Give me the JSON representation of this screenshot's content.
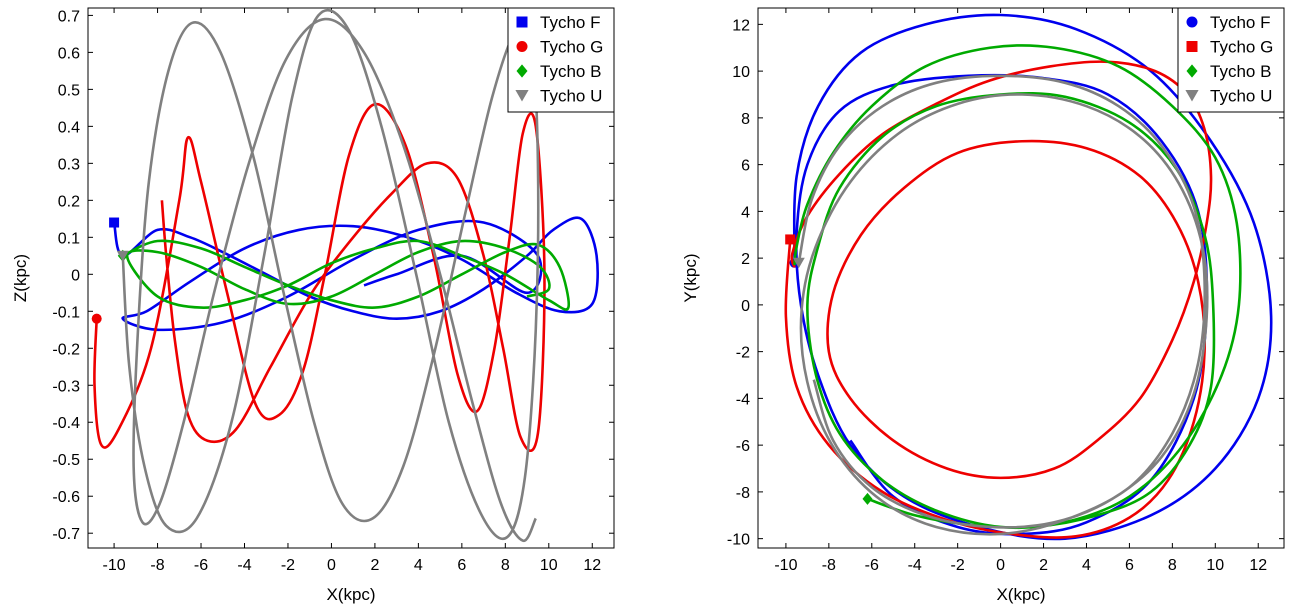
{
  "chart_data": [
    {
      "type": "line",
      "xlabel": "X(kpc)",
      "ylabel": "Z(kpc)",
      "xlim": [
        -11.2,
        13.0
      ],
      "ylim": [
        -0.74,
        0.72
      ],
      "xticks": [
        -10,
        -8,
        -6,
        -4,
        -2,
        0,
        2,
        4,
        6,
        8,
        10,
        12
      ],
      "yticks": [
        -0.7,
        -0.6,
        -0.5,
        -0.4,
        -0.3,
        -0.2,
        -0.1,
        0,
        0.1,
        0.2,
        0.3,
        0.4,
        0.5,
        0.6,
        0.7
      ],
      "legend_position": "top-right",
      "grid": false,
      "series": [
        {
          "name": "Tycho F",
          "color": "#0000ee",
          "marker": "square",
          "x": [
            -10.0,
            -9.6,
            -8.0,
            -6.5,
            -5.0,
            -3.0,
            -1.0,
            1.0,
            3.0,
            5.0,
            7.0,
            9.0,
            10.2,
            11.5,
            12.2,
            12.0,
            10.5,
            8.5,
            6.0,
            3.5,
            1.0,
            -1.5,
            -4.0,
            -6.5,
            -8.5,
            -9.6,
            -8.0,
            -5.0,
            -2.0,
            1.0,
            4.0,
            7.0,
            9.5,
            9.0,
            6.0,
            3.0,
            1.5
          ],
          "y": [
            0.14,
            0.05,
            0.12,
            0.1,
            0.06,
            0.0,
            -0.06,
            -0.1,
            -0.12,
            -0.1,
            -0.04,
            0.05,
            0.12,
            0.15,
            0.05,
            -0.08,
            -0.1,
            -0.05,
            0.04,
            0.1,
            0.13,
            0.12,
            0.07,
            -0.02,
            -0.1,
            -0.12,
            -0.15,
            -0.13,
            -0.06,
            0.04,
            0.12,
            0.14,
            0.05,
            -0.05,
            0.05,
            0.0,
            -0.03
          ]
        },
        {
          "name": "Tycho G",
          "color": "#ee0000",
          "marker": "circle",
          "x": [
            -10.8,
            -10.9,
            -10.6,
            -9.8,
            -8.3,
            -7.0,
            -6.6,
            -6.0,
            -4.8,
            -3.5,
            -2.4,
            -1.3,
            -0.3,
            0.8,
            2.0,
            3.4,
            4.7,
            5.8,
            6.7,
            7.5,
            8.2,
            8.8,
            9.4,
            9.8,
            9.5,
            8.7,
            7.9,
            7.0,
            5.8,
            4.4,
            2.8,
            1.0,
            -0.9,
            -2.8,
            -4.4,
            -5.7,
            -6.6,
            -7.2,
            -7.6,
            -7.8
          ],
          "y": [
            -0.12,
            -0.3,
            -0.46,
            -0.42,
            -0.2,
            0.2,
            0.37,
            0.25,
            -0.05,
            -0.35,
            -0.38,
            -0.26,
            0.0,
            0.32,
            0.46,
            0.35,
            0.05,
            -0.27,
            -0.37,
            -0.2,
            0.1,
            0.38,
            0.4,
            0.0,
            -0.43,
            -0.44,
            -0.2,
            0.05,
            0.26,
            0.3,
            0.22,
            0.1,
            -0.05,
            -0.25,
            -0.42,
            -0.45,
            -0.38,
            -0.18,
            0.05,
            0.2
          ]
        },
        {
          "name": "Tycho B",
          "color": "#00aa00",
          "marker": "diamond",
          "x": [
            -9.6,
            -8.0,
            -6.0,
            -4.0,
            -2.0,
            0.0,
            2.0,
            4.0,
            6.0,
            8.0,
            9.5,
            10.5,
            10.9,
            10.0,
            8.0,
            6.0,
            4.0,
            2.0,
            0.0,
            -2.0,
            -4.0,
            -6.0,
            -8.0,
            -9.4,
            -8.0,
            -6.0,
            -4.0,
            -2.0,
            0.0,
            2.0,
            4.0,
            6.0,
            8.0,
            9.6,
            10.0,
            9.0
          ],
          "y": [
            0.05,
            0.09,
            0.07,
            0.02,
            -0.03,
            -0.07,
            -0.09,
            -0.06,
            0.0,
            0.06,
            0.08,
            0.02,
            -0.09,
            -0.07,
            0.0,
            0.05,
            0.09,
            0.07,
            0.03,
            -0.03,
            -0.07,
            -0.09,
            -0.06,
            0.05,
            0.06,
            0.02,
            -0.04,
            -0.08,
            -0.06,
            0.0,
            0.06,
            0.09,
            0.07,
            0.02,
            -0.04,
            -0.06
          ]
        },
        {
          "name": "Tycho U",
          "color": "#808080",
          "marker": "triangle-down",
          "x": [
            -9.6,
            -9.3,
            -8.6,
            -7.6,
            -6.2,
            -4.6,
            -3.1,
            -1.8,
            -0.6,
            0.8,
            2.3,
            3.9,
            5.4,
            6.9,
            8.1,
            8.9,
            9.4,
            9.5,
            9.2,
            8.5,
            7.4,
            6.1,
            4.7,
            3.3,
            1.9,
            0.5,
            -0.8,
            -2.2,
            -3.6,
            -5.1,
            -6.4,
            -7.5,
            -8.4,
            -8.9,
            -9.1,
            -8.7,
            -7.9,
            -6.8,
            -5.4,
            -3.8,
            -2.1,
            -0.3,
            1.5,
            3.3,
            5.0,
            6.5,
            7.8,
            8.8,
            9.4
          ],
          "y": [
            0.05,
            -0.25,
            -0.52,
            -0.68,
            -0.66,
            -0.4,
            0.05,
            0.48,
            0.7,
            0.66,
            0.4,
            0.0,
            -0.4,
            -0.65,
            -0.71,
            -0.55,
            -0.15,
            0.3,
            0.62,
            0.66,
            0.48,
            0.15,
            -0.22,
            -0.52,
            -0.66,
            -0.62,
            -0.4,
            -0.05,
            0.32,
            0.6,
            0.68,
            0.55,
            0.25,
            -0.15,
            -0.52,
            -0.67,
            -0.62,
            -0.4,
            -0.05,
            0.3,
            0.58,
            0.69,
            0.6,
            0.35,
            0.0,
            -0.35,
            -0.62,
            -0.72,
            -0.66
          ]
        }
      ]
    },
    {
      "type": "line",
      "xlabel": "X(kpc)",
      "ylabel": "Y(kpc)",
      "xlim": [
        -11.3,
        13.2
      ],
      "ylim": [
        -10.4,
        12.7
      ],
      "xticks": [
        -10,
        -8,
        -6,
        -4,
        -2,
        0,
        2,
        4,
        6,
        8,
        10,
        12
      ],
      "yticks": [
        -10,
        -8,
        -6,
        -4,
        -2,
        0,
        2,
        4,
        6,
        8,
        10,
        12
      ],
      "legend_position": "top-right",
      "grid": false,
      "series": [
        {
          "name": "Tycho F",
          "color": "#0000ee",
          "marker": "circle",
          "x": [
            -9.6,
            -9.5,
            -8.5,
            -6.5,
            -3.5,
            0.0,
            3.5,
            7.0,
            9.8,
            11.8,
            12.6,
            12.0,
            10.0,
            7.0,
            3.0,
            -1.0,
            -4.5,
            -7.0,
            -8.5,
            -9.3,
            -9.5,
            -9.0,
            -7.5,
            -5.0,
            -1.5,
            2.0,
            5.0,
            7.5,
            9.2,
            9.6,
            9.0,
            7.0,
            4.0,
            1.0,
            -2.0,
            -5.0,
            -7.0
          ],
          "y": [
            1.8,
            5.5,
            8.5,
            10.8,
            12.0,
            12.4,
            11.8,
            10.0,
            7.0,
            3.5,
            -0.5,
            -4.0,
            -7.0,
            -9.0,
            -10.0,
            -9.5,
            -8.2,
            -6.0,
            -3.0,
            0.0,
            3.0,
            6.0,
            8.3,
            9.4,
            9.8,
            9.7,
            9.0,
            7.0,
            4.0,
            0.0,
            -4.0,
            -7.5,
            -9.3,
            -9.8,
            -9.5,
            -8.2,
            -5.8
          ]
        },
        {
          "name": "Tycho G",
          "color": "#ee0000",
          "marker": "square",
          "x": [
            -9.8,
            -10.0,
            -9.5,
            -8.0,
            -5.5,
            -2.5,
            0.5,
            3.5,
            6.0,
            7.8,
            9.0,
            9.5,
            9.2,
            8.2,
            6.5,
            4.0,
            1.0,
            -2.0,
            -4.5,
            -6.5,
            -7.8,
            -8.0,
            -7.0,
            -5.0,
            -2.5,
            0.0,
            2.5,
            4.5,
            6.5,
            8.0,
            9.0,
            9.6,
            9.8,
            9.5,
            8.7,
            7.2,
            5.0,
            2.3,
            -0.5,
            -3.0,
            -5.5,
            -7.5,
            -9.0,
            -9.7,
            -9.6
          ],
          "y": [
            2.8,
            -0.5,
            -3.5,
            -6.0,
            -8.0,
            -9.2,
            -9.8,
            -9.9,
            -9.1,
            -7.5,
            -5.0,
            -2.0,
            1.0,
            3.5,
            5.5,
            6.7,
            7.0,
            6.5,
            5.0,
            3.0,
            0.5,
            -2.0,
            -4.0,
            -5.8,
            -7.0,
            -7.4,
            -7.0,
            -5.8,
            -4.0,
            -1.5,
            1.0,
            3.5,
            5.5,
            7.5,
            9.0,
            10.0,
            10.4,
            10.2,
            9.6,
            8.6,
            7.3,
            5.6,
            3.8,
            2.2,
            1.6
          ]
        },
        {
          "name": "Tycho B",
          "color": "#00aa00",
          "marker": "diamond",
          "x": [
            -6.2,
            -4.0,
            -1.5,
            1.5,
            4.5,
            7.0,
            8.8,
            9.8,
            9.9,
            9.5,
            8.2,
            6.0,
            3.0,
            0.0,
            -3.0,
            -5.5,
            -7.5,
            -8.5,
            -9.0,
            -8.6,
            -7.5,
            -5.5,
            -3.0,
            0.0,
            3.0,
            6.0,
            8.5,
            10.3,
            11.1,
            11.0,
            10.0,
            8.0,
            5.5,
            2.5,
            -0.5,
            -3.5,
            -6.0,
            -7.8,
            -9.0,
            -9.5,
            -9.6
          ],
          "y": [
            -8.3,
            -9.0,
            -9.4,
            -9.5,
            -9.0,
            -8.0,
            -6.0,
            -3.5,
            0.0,
            3.0,
            5.8,
            7.8,
            8.9,
            9.0,
            8.5,
            7.2,
            5.0,
            2.5,
            0.0,
            -3.0,
            -5.5,
            -7.5,
            -8.8,
            -9.5,
            -9.3,
            -8.2,
            -6.0,
            -3.0,
            0.0,
            3.5,
            6.3,
            8.5,
            10.2,
            11.0,
            11.0,
            10.2,
            8.5,
            6.5,
            4.3,
            2.5,
            1.7
          ]
        },
        {
          "name": "Tycho U",
          "color": "#808080",
          "marker": "triangle-down",
          "x": [
            -9.4,
            -8.8,
            -7.5,
            -5.5,
            -3.0,
            0.0,
            3.0,
            5.5,
            7.5,
            9.0,
            9.5,
            9.2,
            8.0,
            6.0,
            3.0,
            0.0,
            -3.0,
            -5.5,
            -7.5,
            -8.8,
            -9.3,
            -8.8,
            -7.2,
            -4.8,
            -2.0,
            1.0,
            4.0,
            6.5,
            8.3,
            9.4,
            9.6,
            9.0,
            7.5,
            5.2,
            2.5,
            -0.5,
            -3.5,
            -6.0,
            -7.8,
            -8.7
          ],
          "y": [
            1.8,
            4.5,
            6.8,
            8.5,
            9.5,
            9.8,
            9.5,
            8.5,
            6.8,
            4.2,
            1.0,
            -2.5,
            -5.5,
            -7.8,
            -9.2,
            -9.8,
            -9.5,
            -8.4,
            -6.5,
            -4.0,
            -1.0,
            2.0,
            5.0,
            7.3,
            8.6,
            9.0,
            8.5,
            7.2,
            5.2,
            2.5,
            -0.5,
            -3.8,
            -6.5,
            -8.3,
            -9.3,
            -9.5,
            -9.0,
            -7.8,
            -5.8,
            -3.2
          ]
        }
      ]
    }
  ]
}
